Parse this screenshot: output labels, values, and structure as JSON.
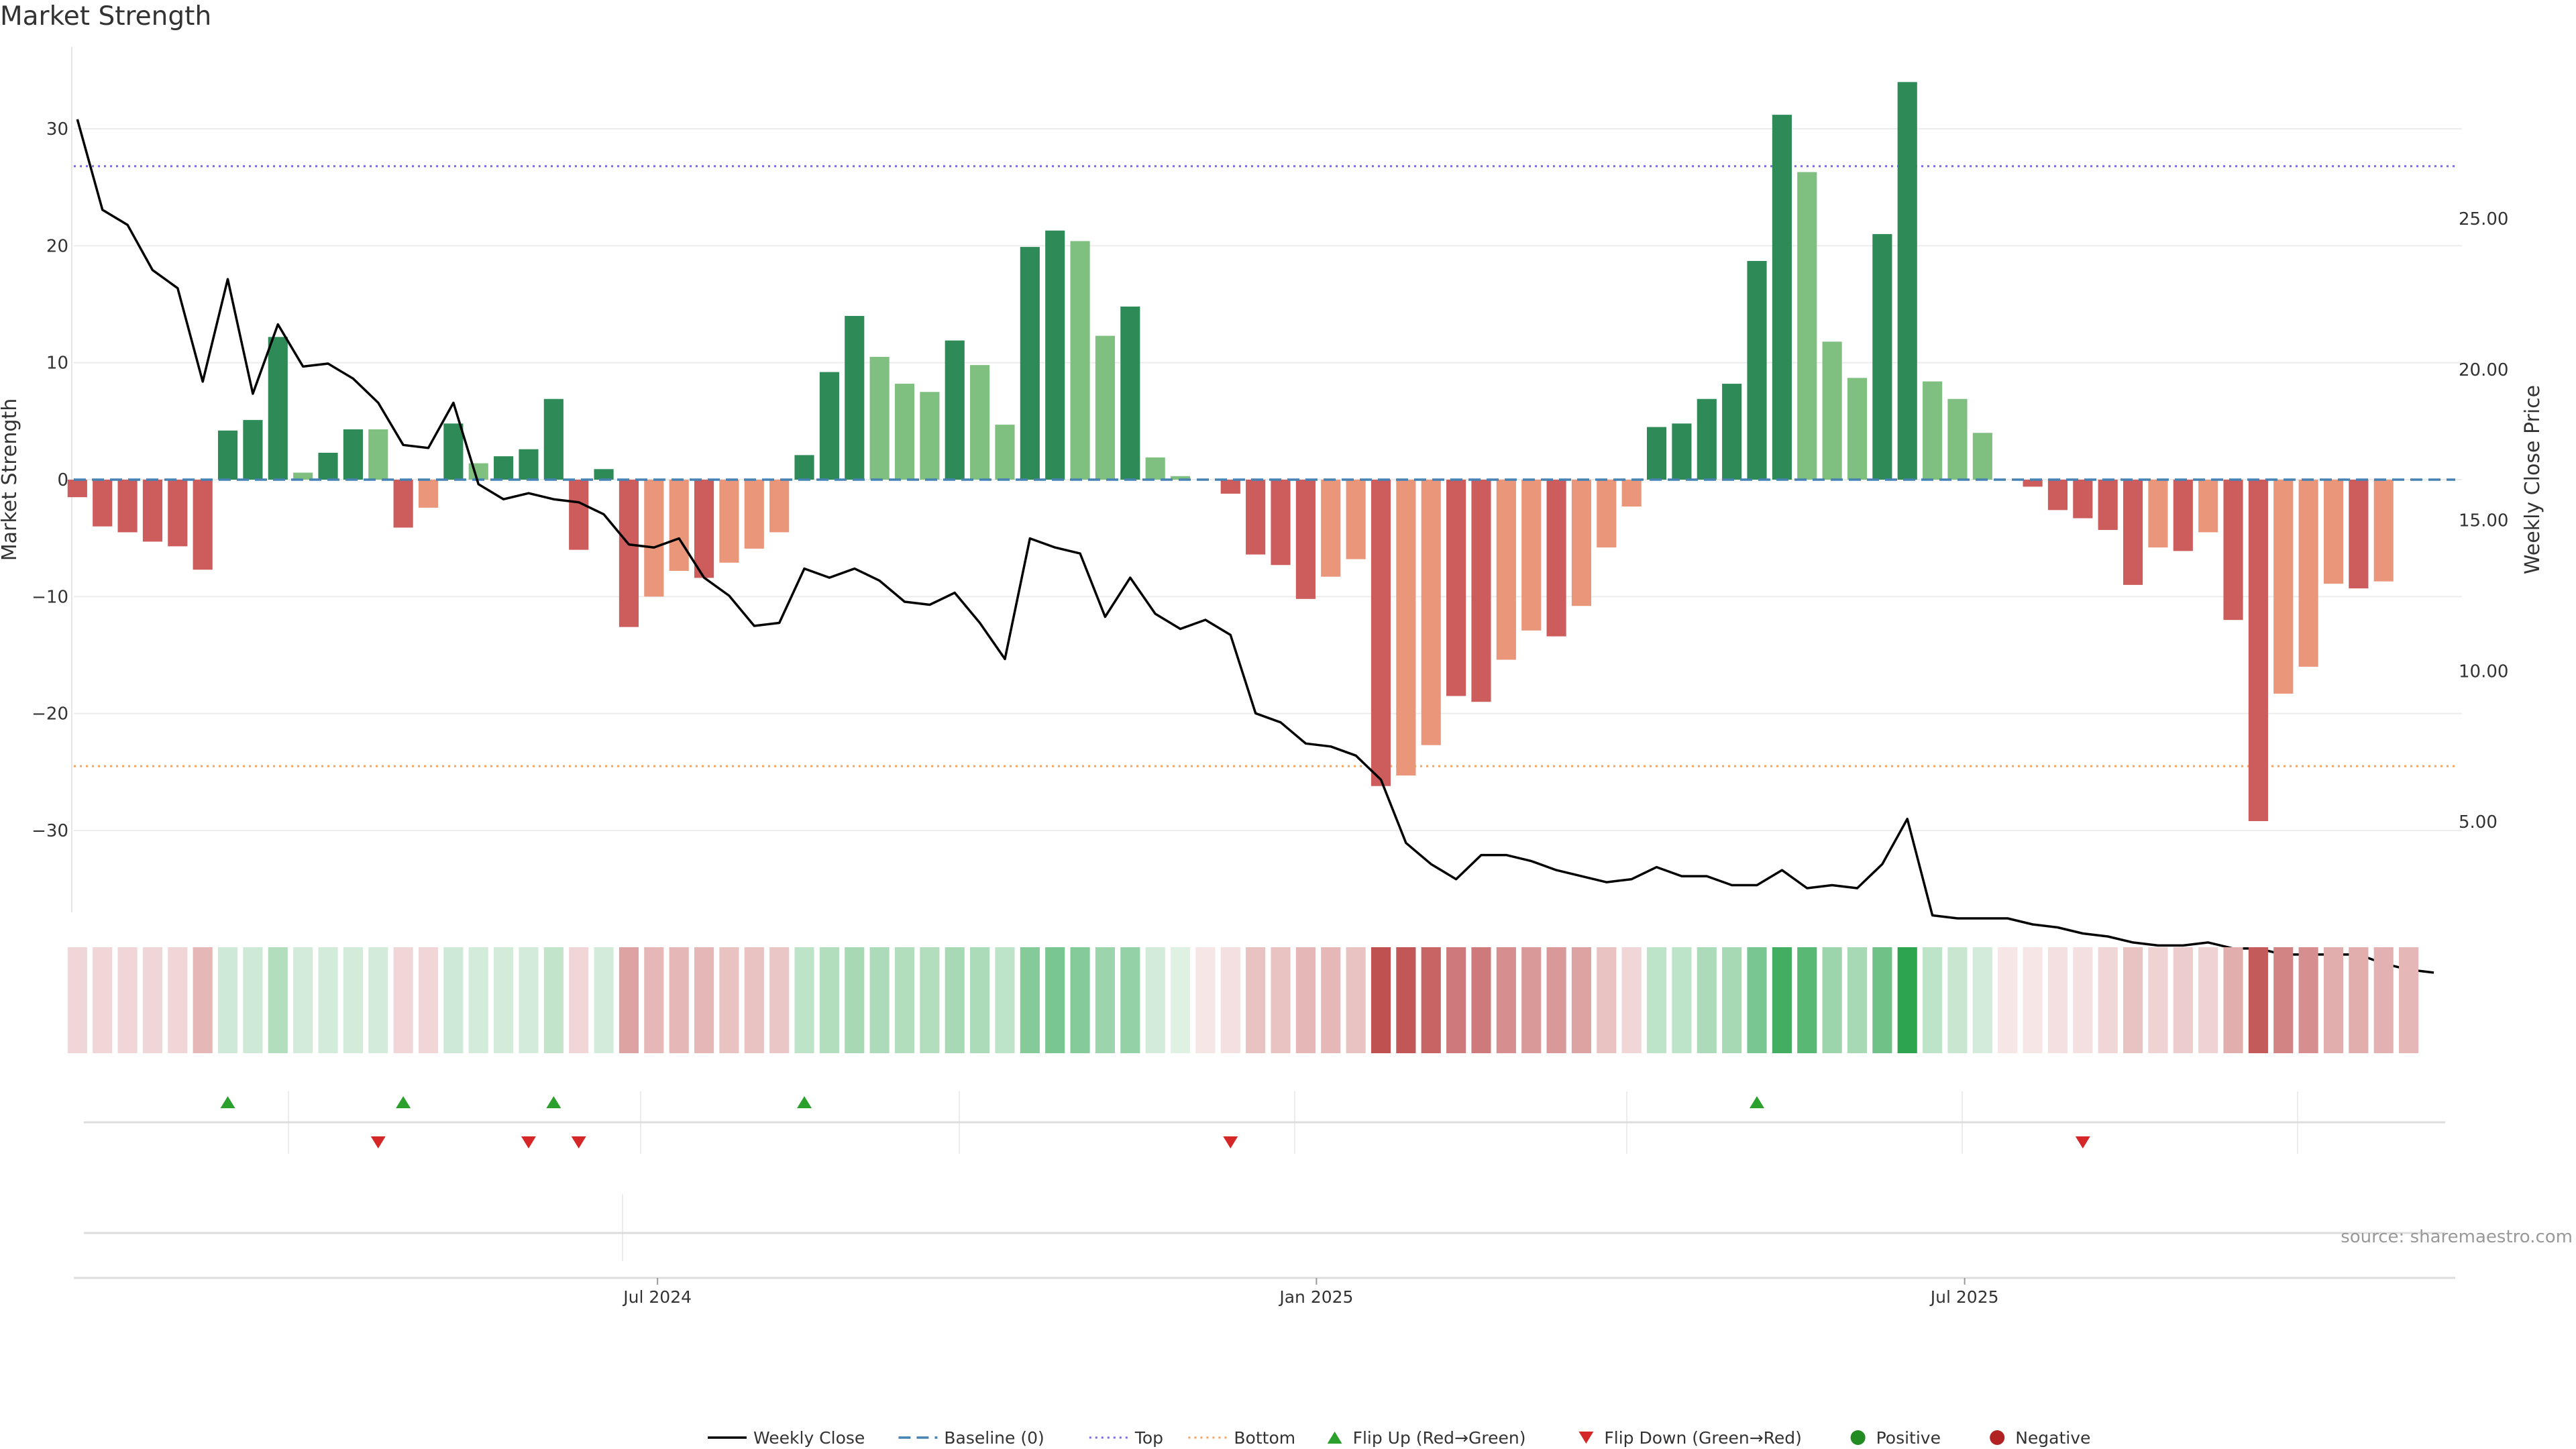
{
  "title": "Market Strength",
  "source": "source: sharemaestro.com",
  "colors": {
    "strong_pos": "#2e8b57",
    "weak_pos": "#7fbf7f",
    "strong_neg": "#cd5c5c",
    "weak_neg": "#e9967a",
    "line": "#000000",
    "baseline": "#4682b4",
    "top": "#7b68ee",
    "bottom": "#f4a460",
    "flip_up": "#2ca02c",
    "flip_down": "#d62728",
    "positive": "#228b22",
    "negative": "#b22222"
  },
  "chart_data": {
    "type": "bar",
    "title": "Market Strength",
    "ylabel": "Market Strength",
    "y2label": "Weekly Close Price",
    "ylim": [
      -37,
      37
    ],
    "y2lim": [
      2.0,
      30.7
    ],
    "yticks": [
      30,
      20,
      10,
      0,
      -10,
      -20,
      -30
    ],
    "ytick_labels": [
      "30",
      "20",
      "10",
      "0",
      "−10",
      "−20",
      "−30"
    ],
    "y2ticks": [
      25,
      20,
      15,
      10,
      5
    ],
    "y2tick_labels": [
      "25.00",
      "20.00",
      "15.00",
      "10.00",
      "5.00"
    ],
    "top_level": 26.8,
    "bottom_level": -24.5,
    "x_start": "2024-01-20",
    "x_end": "2025-11-15",
    "xticks": [
      {
        "label": "Jul 2024",
        "date": "2024-07-01"
      },
      {
        "label": "Jan 2025",
        "date": "2025-01-01"
      },
      {
        "label": "Jul 2025",
        "date": "2025-07-01"
      }
    ],
    "bar_dates": [
      "2024-01-21",
      "2024-01-28",
      "2024-02-04",
      "2024-02-11",
      "2024-02-18",
      "2024-02-25",
      "2024-03-03",
      "2024-03-10",
      "2024-03-17",
      "2024-03-24",
      "2024-03-31",
      "2024-04-07",
      "2024-04-14",
      "2024-04-21",
      "2024-04-28",
      "2024-05-05",
      "2024-05-12",
      "2024-05-19",
      "2024-05-26",
      "2024-06-02",
      "2024-06-09",
      "2024-06-16",
      "2024-06-23",
      "2024-06-30",
      "2024-07-07",
      "2024-07-14",
      "2024-07-21",
      "2024-07-28",
      "2024-08-04",
      "2024-08-11",
      "2024-08-18",
      "2024-08-25",
      "2024-09-01",
      "2024-09-08",
      "2024-09-15",
      "2024-09-22",
      "2024-09-29",
      "2024-10-06",
      "2024-10-13",
      "2024-10-20",
      "2024-10-27",
      "2024-11-03",
      "2024-11-10",
      "2024-11-17",
      "2024-11-24",
      "2024-12-01",
      "2024-12-08",
      "2024-12-15",
      "2024-12-22",
      "2024-12-29",
      "2025-01-05",
      "2025-01-12",
      "2025-01-19",
      "2025-01-26",
      "2025-02-02",
      "2025-02-09",
      "2025-02-16",
      "2025-02-23",
      "2025-03-02",
      "2025-03-09",
      "2025-03-16",
      "2025-03-23",
      "2025-03-30",
      "2025-04-06",
      "2025-04-13",
      "2025-04-20",
      "2025-04-27",
      "2025-05-04",
      "2025-05-11",
      "2025-05-18",
      "2025-05-25",
      "2025-06-01",
      "2025-06-08",
      "2025-06-15",
      "2025-06-22",
      "2025-06-29",
      "2025-07-06",
      "2025-07-13",
      "2025-07-20",
      "2025-07-27",
      "2025-08-03",
      "2025-08-10",
      "2025-08-17",
      "2025-08-24",
      "2025-08-31",
      "2025-09-07",
      "2025-09-14",
      "2025-09-21",
      "2025-09-28",
      "2025-10-05",
      "2025-10-12",
      "2025-10-19",
      "2025-10-26",
      "2025-11-02"
    ],
    "strength": [
      -1.5,
      -4,
      -4.5,
      -5.3,
      -5.7,
      -7.7,
      4.2,
      5.1,
      12.2,
      0.6,
      2.3,
      4.3,
      4.3,
      -4.1,
      -2.4,
      4.8,
      1.4,
      2.0,
      2.6,
      6.9,
      -6,
      0.9,
      -12.6,
      -10,
      -7.8,
      -8.4,
      -7.1,
      -5.9,
      -4.5,
      2.1,
      9.2,
      14,
      10.5,
      8.2,
      7.5,
      11.9,
      9.8,
      4.7,
      19.9,
      21.3,
      20.4,
      12.3,
      14.8,
      1.9,
      0.3,
      0,
      -1.2,
      -6.4,
      -7.3,
      -10.2,
      -8.3,
      -6.8,
      -26.2,
      -25.3,
      -22.7,
      -18.5,
      -19,
      -15.4,
      -12.9,
      -13.4,
      -10.8,
      -5.8,
      -2.3,
      4.5,
      4.8,
      6.9,
      8.2,
      18.7,
      31.2,
      26.3,
      11.8,
      8.7,
      21,
      34,
      8.4,
      6.9,
      4,
      0,
      -0.6,
      -2.6,
      -3.3,
      -4.3,
      -9,
      -5.8,
      -6.1,
      -4.5,
      -12,
      -29.2,
      -18.3,
      -16,
      -8.9,
      -9.3,
      -8.7,
      0
    ],
    "strength_class": [
      "sn",
      "sn",
      "sn",
      "sn",
      "sn",
      "sn",
      "sp",
      "sp",
      "sp",
      "wp",
      "sp",
      "sp",
      "wp",
      "sn",
      "wn",
      "sp",
      "wp",
      "sp",
      "sp",
      "sp",
      "sn",
      "sp",
      "sn",
      "wn",
      "wn",
      "sn",
      "wn",
      "wn",
      "wn",
      "sp",
      "sp",
      "sp",
      "wp",
      "wp",
      "wp",
      "sp",
      "wp",
      "wp",
      "sp",
      "sp",
      "wp",
      "wp",
      "sp",
      "wp",
      "wp",
      "wp",
      "sn",
      "sn",
      "sn",
      "sn",
      "wn",
      "wn",
      "sn",
      "wn",
      "wn",
      "sn",
      "sn",
      "wn",
      "wn",
      "sn",
      "wn",
      "wn",
      "wn",
      "sp",
      "sp",
      "sp",
      "sp",
      "sp",
      "sp",
      "wp",
      "wp",
      "wp",
      "sp",
      "sp",
      "wp",
      "wp",
      "wp",
      "wp",
      "sn",
      "sn",
      "sn",
      "sn",
      "sn",
      "wn",
      "sn",
      "wn",
      "sn",
      "sn",
      "wn",
      "wn",
      "wn",
      "sn",
      "wn",
      "wn"
    ],
    "heat": [
      -0.2,
      -0.2,
      -0.2,
      -0.2,
      -0.2,
      -0.35,
      0.22,
      0.22,
      0.35,
      0.2,
      0.2,
      0.2,
      0.2,
      -0.2,
      -0.2,
      0.22,
      0.2,
      0.2,
      0.2,
      0.28,
      -0.2,
      0.2,
      -0.45,
      -0.35,
      -0.35,
      -0.35,
      -0.3,
      -0.3,
      -0.28,
      0.3,
      0.35,
      0.4,
      0.38,
      0.35,
      0.35,
      0.4,
      0.38,
      0.3,
      0.55,
      0.6,
      0.55,
      0.45,
      0.48,
      0.2,
      0.15,
      -0.12,
      -0.15,
      -0.3,
      -0.3,
      -0.35,
      -0.35,
      -0.3,
      -0.85,
      -0.82,
      -0.75,
      -0.65,
      -0.65,
      -0.55,
      -0.5,
      -0.5,
      -0.45,
      -0.3,
      -0.2,
      0.3,
      0.3,
      0.38,
      0.4,
      0.6,
      0.85,
      0.75,
      0.45,
      0.4,
      0.65,
      0.95,
      0.3,
      0.25,
      0.2,
      -0.12,
      -0.12,
      -0.15,
      -0.15,
      -0.2,
      -0.3,
      -0.22,
      -0.25,
      -0.22,
      -0.4,
      -0.8,
      -0.6,
      -0.55,
      -0.4,
      -0.4,
      -0.38,
      -0.35
    ],
    "close_dates": [
      "2024-01-21",
      "2024-01-28",
      "2024-02-04",
      "2024-02-11",
      "2024-02-18",
      "2024-02-25",
      "2024-03-03",
      "2024-03-10",
      "2024-03-17",
      "2024-03-24",
      "2024-03-31",
      "2024-04-07",
      "2024-04-14",
      "2024-04-21",
      "2024-04-28",
      "2024-05-05",
      "2024-05-12",
      "2024-05-19",
      "2024-05-26",
      "2024-06-02",
      "2024-06-09",
      "2024-06-16",
      "2024-06-23",
      "2024-06-30",
      "2024-07-07",
      "2024-07-14",
      "2024-07-21",
      "2024-07-28",
      "2024-08-04",
      "2024-08-11",
      "2024-08-18",
      "2024-08-25",
      "2024-09-01",
      "2024-09-08",
      "2024-09-15",
      "2024-09-22",
      "2024-09-29",
      "2024-10-06",
      "2024-10-13",
      "2024-10-20",
      "2024-10-27",
      "2024-11-03",
      "2024-11-10",
      "2024-11-17",
      "2024-11-24",
      "2024-12-01",
      "2024-12-08",
      "2024-12-15",
      "2024-12-22",
      "2024-12-29",
      "2025-01-05",
      "2025-01-12",
      "2025-01-19",
      "2025-01-26",
      "2025-02-02",
      "2025-02-09",
      "2025-02-16",
      "2025-02-23",
      "2025-03-02",
      "2025-03-09",
      "2025-03-16",
      "2025-03-23",
      "2025-03-30",
      "2025-04-06",
      "2025-04-13",
      "2025-04-20",
      "2025-04-27",
      "2025-05-04",
      "2025-05-11",
      "2025-05-18",
      "2025-05-25",
      "2025-06-01",
      "2025-06-08",
      "2025-06-15",
      "2025-06-22",
      "2025-06-29",
      "2025-07-06",
      "2025-07-13",
      "2025-07-20",
      "2025-07-27",
      "2025-08-03",
      "2025-08-10",
      "2025-08-17",
      "2025-08-24",
      "2025-08-31",
      "2025-09-07",
      "2025-09-14",
      "2025-09-21",
      "2025-09-28",
      "2025-10-05",
      "2025-10-12",
      "2025-10-19",
      "2025-10-26",
      "2025-11-02",
      "2025-11-09"
    ],
    "close": [
      28.3,
      25.3,
      24.8,
      23.3,
      22.7,
      19.6,
      23.0,
      19.2,
      21.5,
      20.1,
      20.2,
      19.7,
      18.9,
      17.5,
      17.4,
      18.9,
      16.2,
      15.7,
      15.9,
      15.7,
      15.6,
      15.2,
      14.2,
      14.1,
      14.4,
      13.1,
      12.5,
      11.5,
      11.6,
      13.4,
      13.1,
      13.4,
      13.0,
      12.3,
      12.2,
      12.6,
      11.6,
      10.4,
      14.4,
      14.1,
      13.9,
      11.8,
      13.1,
      11.9,
      11.4,
      11.7,
      11.2,
      8.6,
      8.3,
      7.6,
      7.5,
      7.2,
      6.4,
      4.3,
      3.6,
      3.1,
      3.9,
      3.9,
      3.7,
      3.4,
      3.2,
      3.0,
      3.1,
      3.5,
      3.2,
      3.2,
      2.9,
      2.9,
      3.4,
      2.8,
      2.9,
      2.8,
      3.6,
      5.1,
      1.9,
      1.8,
      1.8,
      1.8,
      1.6,
      1.5,
      1.3,
      1.2,
      1.0,
      0.9,
      0.9,
      1.0,
      0.8,
      0.8,
      0.6,
      0.6,
      0.6,
      0.6,
      0.3,
      0.1,
      0.0
    ],
    "flip_up_dates": [
      "2024-03-03",
      "2024-04-21",
      "2024-06-02",
      "2024-08-11",
      "2025-05-04"
    ],
    "flip_down_dates": [
      "2024-04-14",
      "2024-05-26",
      "2024-06-09",
      "2024-12-08",
      "2025-08-03"
    ],
    "legend": {
      "placement": "bottom-center",
      "entries": [
        {
          "label": "Weekly Close",
          "kind": "line"
        },
        {
          "label": "Baseline (0)",
          "kind": "dash"
        },
        {
          "label": "Top",
          "kind": "dot-top"
        },
        {
          "label": "Bottom",
          "kind": "dot-bottom"
        },
        {
          "label": "Flip Up (Red→Green)",
          "kind": "tri-up"
        },
        {
          "label": "Flip Down (Green→Red)",
          "kind": "tri-down"
        },
        {
          "label": "Positive",
          "kind": "dot-pos"
        },
        {
          "label": "Negative",
          "kind": "dot-neg"
        }
      ]
    }
  }
}
